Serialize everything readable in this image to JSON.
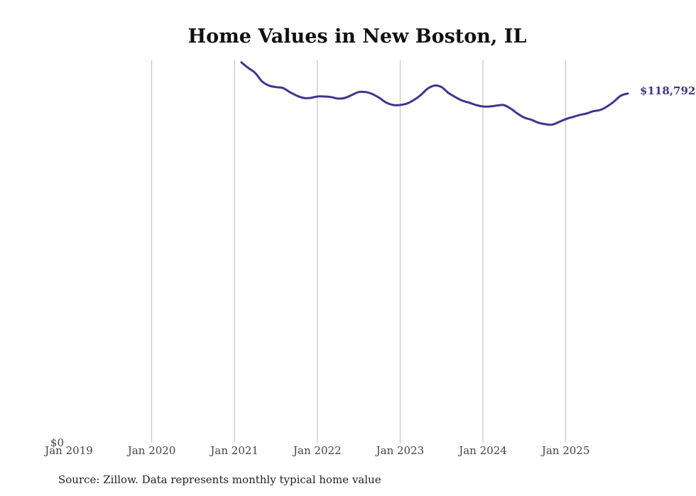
{
  "chart_data": {
    "type": "line",
    "title": "Home Values in New Boston, IL",
    "xlabel": "",
    "ylabel": "",
    "x_ticks": [
      "Jan 2019",
      "Jan 2020",
      "Jan 2021",
      "Jan 2022",
      "Jan 2023",
      "Jan 2024",
      "Jan 2025"
    ],
    "y_ticks": [
      "$0"
    ],
    "ylim": [
      0,
      130100
    ],
    "x_range": [
      "Jan 2019",
      "Dec 2025"
    ],
    "grid": "vertical",
    "line_color": "#3f3590",
    "end_label": "$118,792",
    "series": [
      {
        "name": "Typical home value",
        "x": [
          "2021-02",
          "2021-03",
          "2021-04",
          "2021-05",
          "2021-06",
          "2021-07",
          "2021-08",
          "2021-09",
          "2021-10",
          "2021-11",
          "2021-12",
          "2022-01",
          "2022-02",
          "2022-03",
          "2022-04",
          "2022-05",
          "2022-06",
          "2022-07",
          "2022-08",
          "2022-09",
          "2022-10",
          "2022-11",
          "2022-12",
          "2023-01",
          "2023-02",
          "2023-03",
          "2023-04",
          "2023-05",
          "2023-06",
          "2023-07",
          "2023-08",
          "2023-09",
          "2023-10",
          "2023-11",
          "2023-12",
          "2024-01",
          "2024-02",
          "2024-03",
          "2024-04",
          "2024-05",
          "2024-06",
          "2024-07",
          "2024-08",
          "2024-09",
          "2024-10",
          "2024-11",
          "2024-12",
          "2025-01",
          "2025-02",
          "2025-03",
          "2025-04",
          "2025-05",
          "2025-06",
          "2025-07",
          "2025-08",
          "2025-09",
          "2025-10"
        ],
        "values": [
          129400,
          127500,
          125800,
          122900,
          121500,
          121000,
          120700,
          119300,
          118100,
          117300,
          117300,
          117800,
          117800,
          117600,
          117100,
          117300,
          118300,
          119300,
          119300,
          118600,
          117300,
          115700,
          114900,
          114900,
          115400,
          116600,
          118300,
          120500,
          121500,
          121000,
          119000,
          117600,
          116400,
          115700,
          114900,
          114400,
          114400,
          114700,
          114900,
          113700,
          112000,
          110600,
          109900,
          108900,
          108400,
          108200,
          109100,
          110100,
          110800,
          111500,
          112000,
          112800,
          113200,
          114400,
          116100,
          118100,
          118792
        ]
      }
    ]
  },
  "footer": {
    "source": "Source: Zillow. Data represents monthly typical home value"
  }
}
